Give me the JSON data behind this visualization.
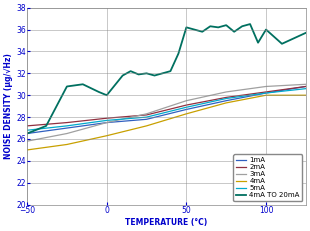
{
  "title": "",
  "xlabel": "TEMPERATURE (°C)",
  "ylabel": "NOISE DENSITY (μg/√Hz)",
  "xlim": [
    -50,
    125
  ],
  "ylim": [
    20,
    38
  ],
  "xticks": [
    -50,
    0,
    50,
    100
  ],
  "yticks": [
    20,
    22,
    24,
    26,
    28,
    30,
    32,
    34,
    36,
    38
  ],
  "legend_labels": [
    "1mA",
    "2mA",
    "3mA",
    "4mA",
    "5mA",
    "4mA TO 20mA"
  ],
  "series": {
    "1mA": {
      "color": "#3060C0",
      "x": [
        -50,
        -25,
        0,
        25,
        50,
        75,
        100,
        125
      ],
      "y": [
        26.5,
        27.0,
        27.5,
        27.8,
        28.7,
        29.5,
        30.2,
        30.8
      ]
    },
    "2mA": {
      "color": "#903040",
      "x": [
        -50,
        -25,
        0,
        25,
        50,
        75,
        100,
        125
      ],
      "y": [
        27.2,
        27.5,
        27.9,
        28.2,
        29.1,
        29.8,
        30.3,
        30.8
      ]
    },
    "3mA": {
      "color": "#A0A0A0",
      "x": [
        -50,
        -25,
        0,
        25,
        50,
        75,
        100,
        125
      ],
      "y": [
        25.8,
        26.5,
        27.5,
        28.3,
        29.5,
        30.3,
        30.8,
        31.0
      ]
    },
    "4mA": {
      "color": "#C8A000",
      "x": [
        -50,
        -25,
        0,
        25,
        50,
        75,
        100,
        125
      ],
      "y": [
        25.0,
        25.5,
        26.3,
        27.2,
        28.3,
        29.3,
        30.0,
        30.0
      ]
    },
    "5mA": {
      "color": "#00AACC",
      "x": [
        -50,
        -25,
        0,
        25,
        50,
        75,
        100,
        125
      ],
      "y": [
        26.8,
        27.2,
        27.7,
        28.0,
        28.9,
        29.7,
        30.2,
        30.6
      ]
    },
    "4mA TO 20mA": {
      "color": "#007060",
      "x": [
        -50,
        -38,
        -25,
        -15,
        -5,
        0,
        10,
        15,
        20,
        25,
        30,
        35,
        40,
        45,
        50,
        55,
        60,
        65,
        70,
        75,
        80,
        85,
        90,
        95,
        100,
        110,
        125
      ],
      "y": [
        26.5,
        27.2,
        30.8,
        31.0,
        30.3,
        30.0,
        31.8,
        32.2,
        31.9,
        32.0,
        31.8,
        32.0,
        32.2,
        33.8,
        36.2,
        36.0,
        35.8,
        36.3,
        36.2,
        36.4,
        35.8,
        36.3,
        36.5,
        34.8,
        36.0,
        34.7,
        35.7
      ]
    }
  },
  "text_color": "#0000CC",
  "background_color": "#ffffff",
  "grid_color": "#888888",
  "label_fontsize": 5.5,
  "tick_fontsize": 5.5,
  "legend_fontsize": 5.0
}
